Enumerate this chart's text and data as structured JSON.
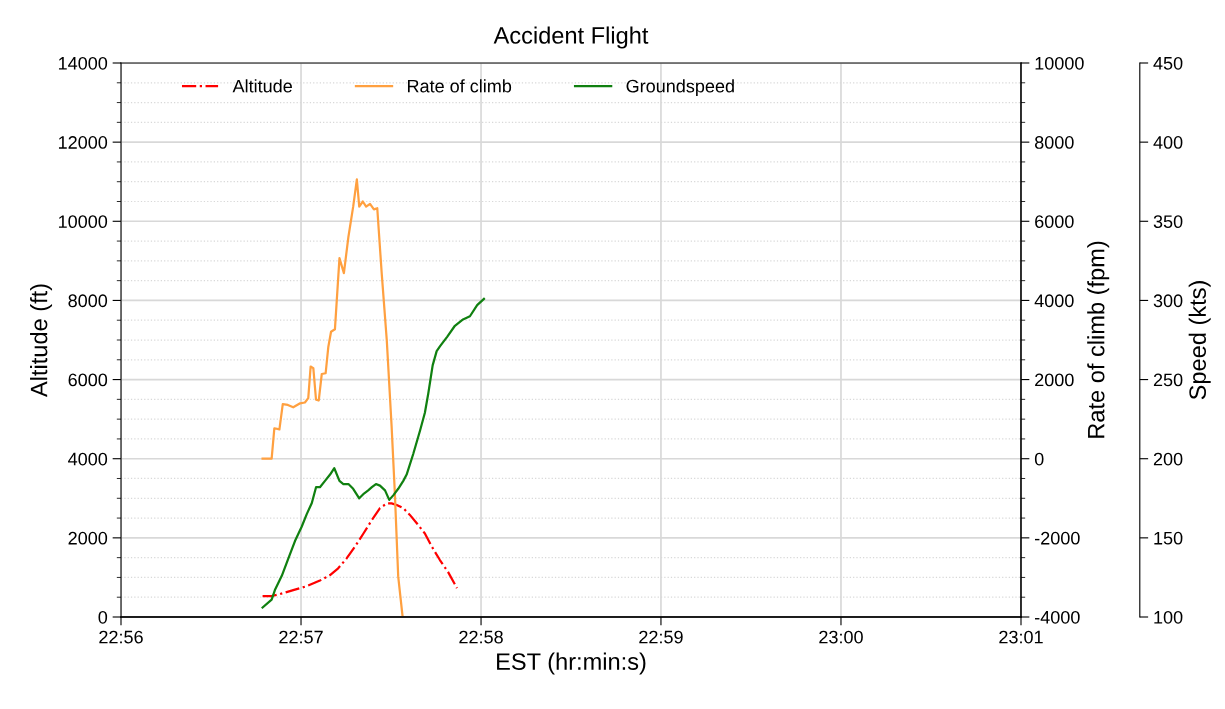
{
  "chart_data": {
    "type": "line",
    "title": "Accident Flight",
    "xlabel": "EST (hr:min:s)",
    "ylabel": "Altitude (ft)",
    "y2label": "Rate of climb (fpm)",
    "y3label": "Speed (kts)",
    "xlim": [
      22.93333,
      23.01667
    ],
    "xticks": [
      {
        "value": 22.93333,
        "label": "22:56"
      },
      {
        "value": 22.95,
        "label": "22:57"
      },
      {
        "value": 22.96667,
        "label": "22:58"
      },
      {
        "value": 22.98333,
        "label": "22:59"
      },
      {
        "value": 23.0,
        "label": "23:00"
      },
      {
        "value": 23.01667,
        "label": "23:01"
      }
    ],
    "ylim": [
      0,
      14000
    ],
    "yticks": [
      0,
      2000,
      4000,
      6000,
      8000,
      10000,
      12000,
      14000
    ],
    "y2lim": [
      -4000,
      10000
    ],
    "y2ticks": [
      -4000,
      -2000,
      0,
      2000,
      4000,
      6000,
      8000,
      10000
    ],
    "y3lim": [
      100,
      450
    ],
    "y3ticks": [
      100,
      150,
      200,
      250,
      300,
      350,
      400,
      450
    ],
    "grid": true,
    "legend": "top",
    "marker": "none",
    "series": [
      {
        "name": "Altitude",
        "color": "#ff0000",
        "line_style": "dashdot",
        "x": [
          22.94644,
          22.94728,
          22.94806,
          22.94928,
          22.95053,
          22.95175,
          22.95269,
          22.95344,
          22.95422,
          22.955,
          22.95578,
          22.95656,
          22.95731,
          22.95794,
          22.95839,
          22.95886,
          22.95947,
          22.96008,
          22.96072,
          22.96147,
          22.96211,
          22.96286,
          22.96361,
          22.96444
        ],
        "values": [
          530,
          530,
          580,
          680,
          780,
          920,
          1060,
          1230,
          1480,
          1780,
          2110,
          2450,
          2750,
          2870,
          2870,
          2830,
          2750,
          2580,
          2370,
          2110,
          1780,
          1440,
          1140,
          730
        ]
      },
      {
        "name": "Rate of climb",
        "color": "#ffa040",
        "line_style": "solid",
        "axis": "y2",
        "x": [
          22.94644,
          22.94728,
          22.94753,
          22.948,
          22.94831,
          22.94878,
          22.94928,
          22.94992,
          22.95036,
          22.95067,
          22.95089,
          22.95114,
          22.95139,
          22.95164,
          22.95192,
          22.95228,
          22.95253,
          22.95278,
          22.95314,
          22.95356,
          22.95397,
          22.95439,
          22.95483,
          22.95517,
          22.95539,
          22.95572,
          22.95603,
          22.95639,
          22.95675,
          22.95706,
          22.95747,
          22.95794,
          22.95839,
          22.95869,
          22.959,
          22.95939
        ],
        "values": [
          0,
          0,
          770,
          740,
          1380,
          1360,
          1300,
          1400,
          1420,
          1530,
          2330,
          2290,
          1490,
          1470,
          2140,
          2160,
          2830,
          3210,
          3270,
          5070,
          4690,
          5610,
          6370,
          7060,
          6370,
          6500,
          6370,
          6440,
          6300,
          6330,
          4690,
          3000,
          810,
          -880,
          -2980,
          -3950
        ]
      },
      {
        "name": "Groundspeed",
        "color": "#108010",
        "line_style": "solid",
        "axis": "y3",
        "x": [
          22.94644,
          22.94728,
          22.94758,
          22.94822,
          22.94883,
          22.94944,
          22.95006,
          22.95053,
          22.951,
          22.95139,
          22.95175,
          22.95222,
          22.95269,
          22.95308,
          22.95356,
          22.95392,
          22.95439,
          22.95483,
          22.95539,
          22.95583,
          22.95622,
          22.95656,
          22.95694,
          22.95731,
          22.95778,
          22.95817,
          22.95856,
          22.959,
          22.95947,
          22.95978,
          22.96039,
          22.96103,
          22.96147,
          22.96178,
          22.96219,
          22.96256,
          22.96286,
          22.96353,
          22.96425,
          22.965,
          22.96564,
          22.96631,
          22.96694
        ],
        "values": [
          106,
          111,
          117,
          126,
          137,
          148,
          157,
          165,
          172,
          182,
          182,
          186,
          190,
          194,
          186,
          184,
          184,
          181,
          175,
          178,
          180,
          182,
          184,
          183,
          180,
          174,
          177,
          181,
          186,
          190,
          203,
          218,
          229,
          241,
          259,
          268,
          271,
          277,
          284,
          288,
          290,
          297,
          301
        ]
      }
    ]
  }
}
